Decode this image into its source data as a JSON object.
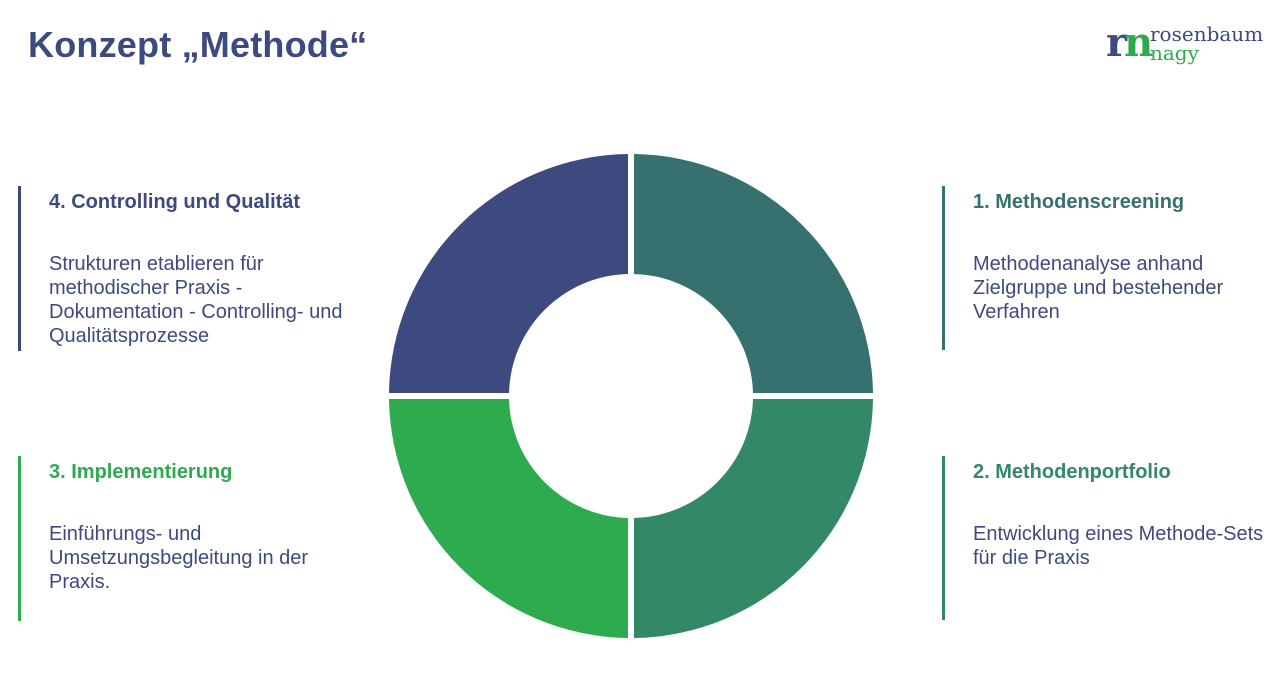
{
  "title": "Konzept „Methode“",
  "logo": {
    "mark_r": "r",
    "mark_n": "n",
    "word1": "rosenbaum",
    "word2": "nagy"
  },
  "colors": {
    "navy": "#3d4a7f",
    "teal": "#36716f",
    "green_dark": "#338866",
    "green_bright": "#2eaa4f"
  },
  "segments": [
    {
      "id": 1,
      "color": "#36716f",
      "quadrant": "top-right"
    },
    {
      "id": 2,
      "color": "#338866",
      "quadrant": "bottom-right"
    },
    {
      "id": 3,
      "color": "#2eaa4f",
      "quadrant": "bottom-left"
    },
    {
      "id": 4,
      "color": "#3d4a7f",
      "quadrant": "top-left"
    }
  ],
  "steps": {
    "s1": {
      "heading": "1. Methodenscreening",
      "body": "Methodenanalyse anhand Zielgruppe und bestehender Verfahren",
      "color": "#36716f"
    },
    "s2": {
      "heading": "2. Methodenportfolio",
      "body": "Entwicklung eines Methode-Sets für die Praxis",
      "color": "#338866"
    },
    "s3": {
      "heading": "3. Implementierung",
      "body": "Einführungs- und Umsetzungsbegleitung in der Praxis.",
      "color": "#2eaa4f"
    },
    "s4": {
      "heading": "4. Controlling und Qualität",
      "body": "Strukturen etablieren für methodischer Praxis - Dokumentation - Controlling- und Qualitätsprozesse",
      "color": "#3d4a7f"
    }
  }
}
